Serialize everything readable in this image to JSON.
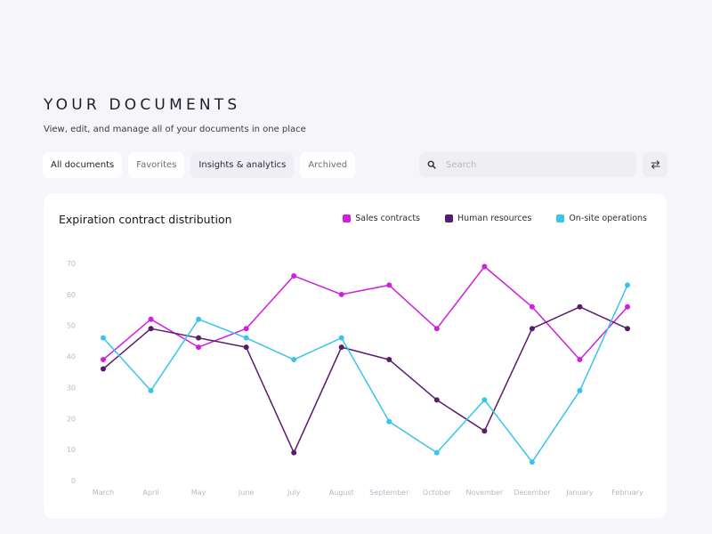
{
  "header": {
    "title": "YOUR DOCUMENTS",
    "subtitle": "View, edit, and manage all of your documents in one place"
  },
  "tabs": [
    {
      "label": "All documents"
    },
    {
      "label": "Favorites"
    },
    {
      "label": "Insights & analytics"
    },
    {
      "label": "Archived"
    }
  ],
  "search": {
    "placeholder": "Search",
    "icon": "search-icon"
  },
  "filter": {
    "icon": "swap-arrows-icon"
  },
  "colors": {
    "background": "#f6f5fa",
    "card": "#ffffff",
    "sales": "#d21ee0",
    "hr": "#5a1a6e",
    "onsite": "#39c4ee"
  },
  "chart_data": {
    "type": "line",
    "title": "Expiration contract distribution",
    "xlabel": "",
    "ylabel": "",
    "categories": [
      "March",
      "April",
      "May",
      "June",
      "July",
      "August",
      "September",
      "October",
      "November",
      "December",
      "January",
      "February"
    ],
    "ylim": [
      0,
      70
    ],
    "yticks": [
      0,
      10,
      20,
      30,
      40,
      50,
      60,
      70
    ],
    "grid": false,
    "legend": "top-right",
    "series": [
      {
        "name": "Sales contracts",
        "color": "#d21ee0",
        "values": [
          39,
          52,
          43,
          49,
          66,
          60,
          63,
          49,
          69,
          56,
          39,
          56
        ]
      },
      {
        "name": "Human resources",
        "color": "#5a1a6e",
        "values": [
          36,
          49,
          46,
          43,
          9,
          43,
          39,
          26,
          16,
          49,
          56,
          49
        ]
      },
      {
        "name": "On-site operations",
        "color": "#39c4ee",
        "values": [
          46,
          29,
          52,
          46,
          39,
          46,
          19,
          9,
          26,
          6,
          29,
          63
        ]
      }
    ]
  }
}
